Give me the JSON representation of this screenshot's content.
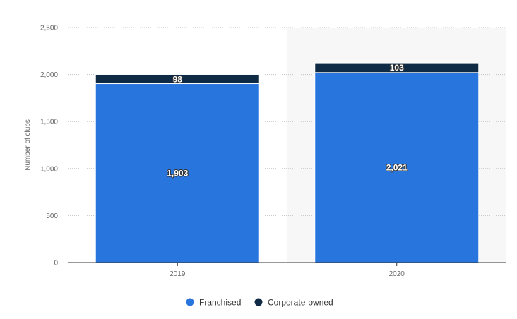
{
  "chart_data": {
    "type": "bar",
    "stacked": true,
    "categories": [
      "2019",
      "2020"
    ],
    "series": [
      {
        "name": "Franchised",
        "values": [
          1903,
          2021
        ],
        "labels": [
          "1,903",
          "2,021"
        ],
        "color": "#2876dd"
      },
      {
        "name": "Corporate-owned",
        "values": [
          98,
          103
        ],
        "labels": [
          "98",
          "103"
        ],
        "color": "#0f2a44"
      }
    ],
    "ylabel": "Number of clubs",
    "ylim": [
      0,
      2500
    ],
    "yticks": [
      0,
      500,
      1000,
      1500,
      2000,
      2500
    ],
    "ytick_labels": [
      "0",
      "500",
      "1,000",
      "1,500",
      "2,000",
      "2,500"
    ],
    "highlight_category": "2020",
    "highlight_color": "#f7f7f8",
    "grid": true,
    "legend_position": "bottom-center"
  }
}
